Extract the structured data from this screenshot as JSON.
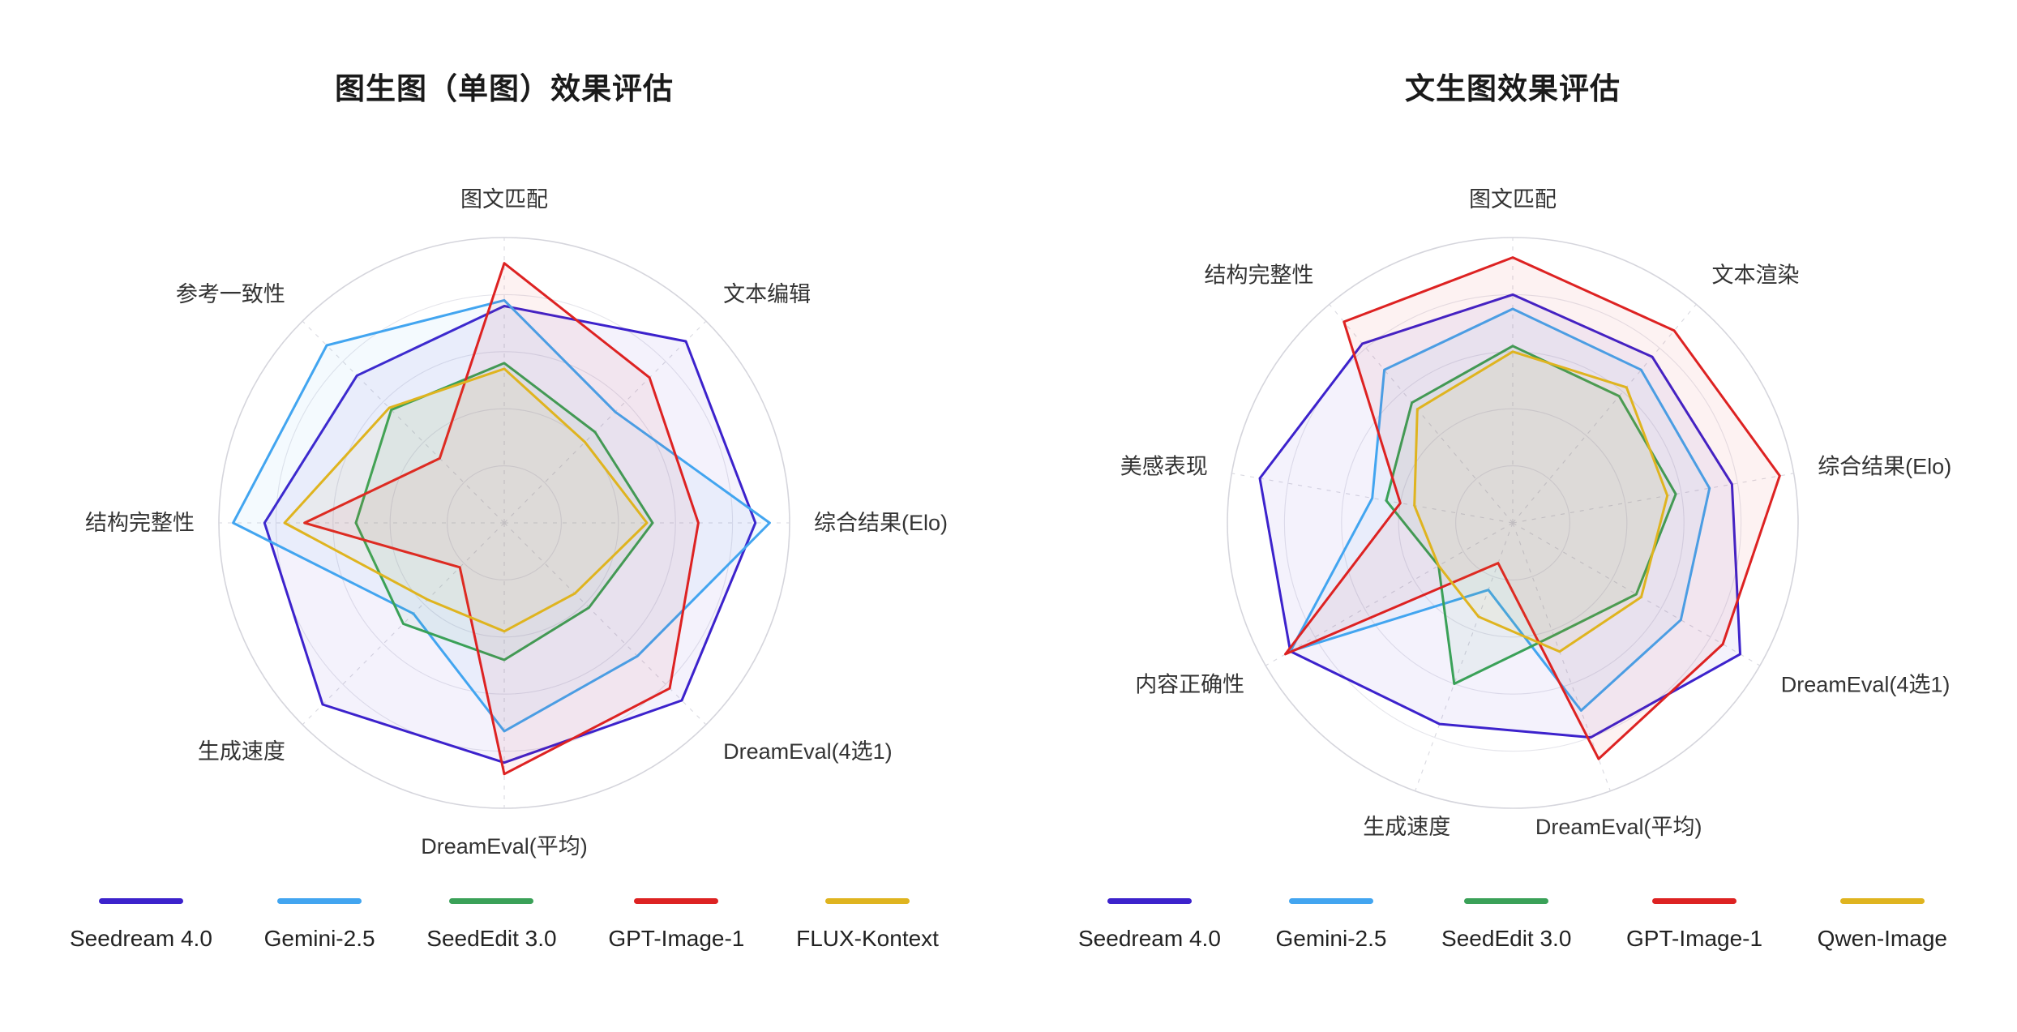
{
  "chart_data": [
    {
      "type": "radar",
      "title": "图生图（单图）效果评估",
      "categories": [
        "图文匹配",
        "文本编辑",
        "综合结果(Elo)",
        "DreamEval(4选1)",
        "DreamEval(平均)",
        "生成速度",
        "结构完整性",
        "参考一致性"
      ],
      "scale": {
        "min": 0,
        "max": 100,
        "rings": 5
      },
      "grid": "circular",
      "legend_position": "bottom",
      "series": [
        {
          "name": "Seedream 4.0",
          "color": "#3c22cc",
          "values": [
            76,
            90,
            88,
            88,
            84,
            90,
            84,
            73
          ]
        },
        {
          "name": "Gemini-2.5",
          "color": "#42a5f0",
          "values": [
            78,
            55,
            93,
            66,
            73,
            45,
            95,
            88
          ]
        },
        {
          "name": "SeedEdit 3.0",
          "color": "#3aa158",
          "values": [
            56,
            45,
            52,
            42,
            48,
            50,
            52,
            56
          ]
        },
        {
          "name": "GPT-Image-1",
          "color": "#dd2222",
          "values": [
            91,
            72,
            68,
            82,
            88,
            22,
            70,
            32
          ]
        },
        {
          "name": "FLUX-Kontext",
          "color": "#dfb41f",
          "values": [
            54,
            40,
            50,
            35,
            38,
            38,
            77,
            57
          ]
        }
      ]
    },
    {
      "type": "radar",
      "title": "文生图效果评估",
      "categories": [
        "图文匹配",
        "文本渲染",
        "综合结果(Elo)",
        "DreamEval(4选1)",
        "DreamEval(平均)",
        "生成速度",
        "内容正确性",
        "美感表现",
        "结构完整性"
      ],
      "scale": {
        "min": 0,
        "max": 100,
        "rings": 5
      },
      "grid": "circular",
      "legend_position": "bottom",
      "series": [
        {
          "name": "Seedream 4.0",
          "color": "#3c22cc",
          "values": [
            80,
            76,
            78,
            92,
            80,
            75,
            90,
            90,
            82
          ]
        },
        {
          "name": "Gemini-2.5",
          "color": "#42a5f0",
          "values": [
            75,
            70,
            70,
            68,
            70,
            25,
            90,
            50,
            70
          ]
        },
        {
          "name": "SeedEdit 3.0",
          "color": "#3aa158",
          "values": [
            62,
            58,
            58,
            50,
            42,
            60,
            30,
            45,
            55
          ]
        },
        {
          "name": "GPT-Image-1",
          "color": "#dd2222",
          "values": [
            93,
            88,
            95,
            85,
            88,
            15,
            92,
            40,
            92
          ]
        },
        {
          "name": "Qwen-Image",
          "color": "#dfb41f",
          "values": [
            60,
            62,
            55,
            52,
            48,
            35,
            30,
            35,
            52
          ]
        }
      ]
    }
  ]
}
